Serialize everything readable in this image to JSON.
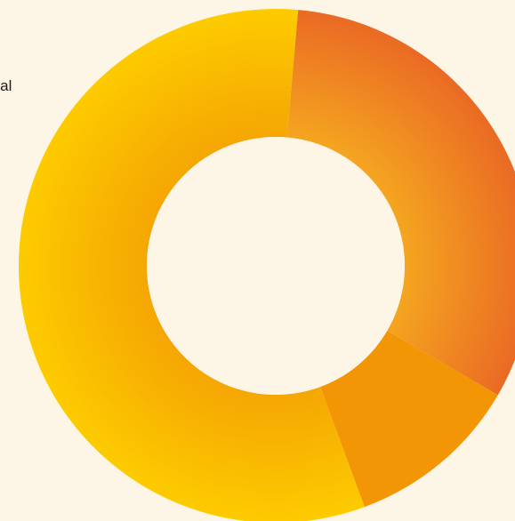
{
  "page": {
    "partial_label": "ntal"
  },
  "chart_data": {
    "type": "pie",
    "style": "donut",
    "title": "",
    "categories": [
      "",
      "",
      ""
    ],
    "values": [
      32,
      11,
      57
    ],
    "start_angle_deg": 5,
    "legend": "none",
    "colors": {
      "background": "#fdf6e7",
      "hole": "#fdf6e7",
      "slices": [
        {
          "outer": "#ea6a24",
          "inner": "#f4a520"
        },
        {
          "outer": "#f29605",
          "inner": "#f29605"
        },
        {
          "outer": "#fdcb00",
          "inner": "#f5a603"
        }
      ]
    }
  }
}
